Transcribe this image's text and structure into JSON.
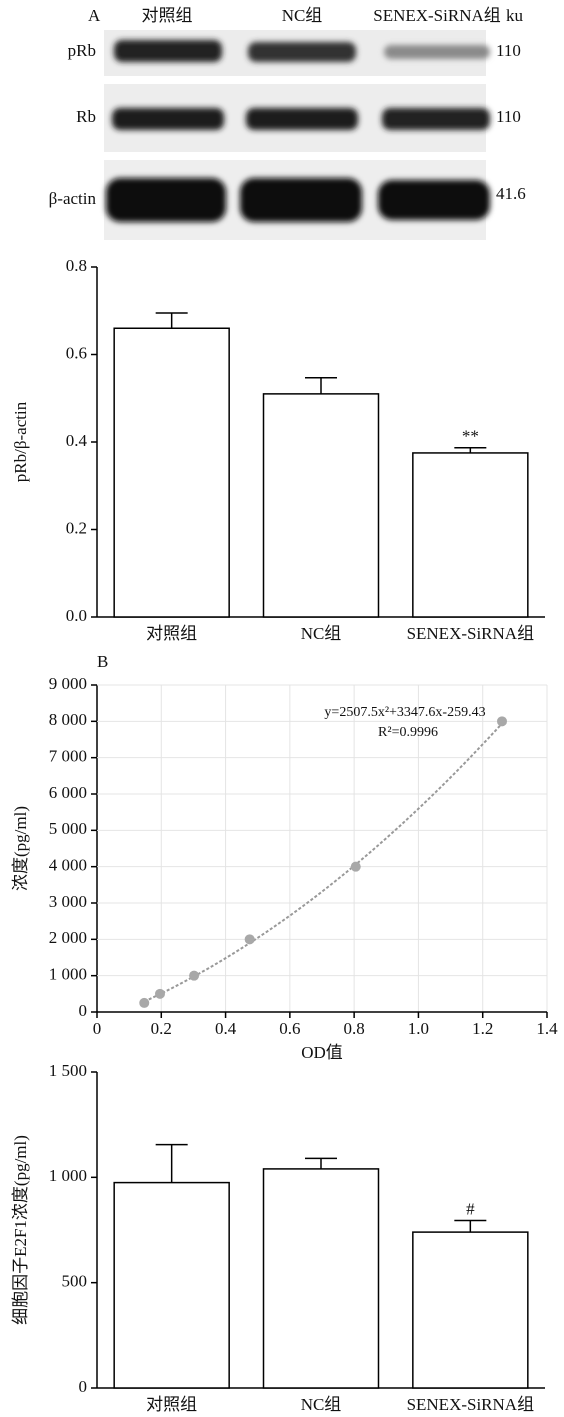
{
  "blot": {
    "panel_label": "A",
    "columns": [
      "对照组",
      "NC组",
      "SENEX-SiRNA组"
    ],
    "unit": "ku",
    "rows": [
      {
        "label": "pRb",
        "size": "110"
      },
      {
        "label": "Rb",
        "size": "110"
      },
      {
        "label": "β-actin",
        "size": "41.6"
      }
    ]
  },
  "chart_data": [
    {
      "type": "bar",
      "y_label": "pRb/β-actin",
      "categories": [
        "对照组",
        "NC组",
        "SENEX-SiRNA组"
      ],
      "values": [
        0.66,
        0.51,
        0.375
      ],
      "errors": [
        0.035,
        0.037,
        0.012
      ],
      "annotations": [
        null,
        null,
        "**"
      ],
      "color": "#ffffff",
      "ylim": [
        0,
        0.8
      ],
      "yticks": [
        {
          "value": 0,
          "label": "0.0"
        },
        0.2,
        0.4,
        0.6,
        0.8
      ]
    },
    {
      "type": "scatter",
      "panel_label": "B",
      "x_label": "OD值",
      "y_label": "浓度(pg/ml)",
      "x": [
        0.147,
        0.196,
        0.302,
        0.475,
        0.805,
        1.26
      ],
      "values": [
        250,
        500,
        1000,
        2000,
        4000,
        8000
      ],
      "color": "#a8a8a8",
      "equation": "y=2507.5x²+3347.6x-259.43",
      "r_squared": "R²=0.9996",
      "fit_coefficients": [
        2507.5,
        3347.6,
        -259.43
      ],
      "grid": true,
      "xlim": [
        0,
        1.4
      ],
      "xticks": [
        0,
        0.2,
        0.4,
        0.6,
        0.8,
        {
          "value": 1,
          "label": "1.0"
        },
        1.2,
        1.4
      ],
      "ylim": [
        0,
        9000
      ],
      "yticks": [
        0,
        {
          "value": 1000,
          "label": "1 000"
        },
        {
          "value": 2000,
          "label": "2 000"
        },
        {
          "value": 3000,
          "label": "3 000"
        },
        {
          "value": 4000,
          "label": "4 000"
        },
        {
          "value": 5000,
          "label": "5 000"
        },
        {
          "value": 6000,
          "label": "6 000"
        },
        {
          "value": 7000,
          "label": "7 000"
        },
        {
          "value": 8000,
          "label": "8 000"
        },
        {
          "value": 9000,
          "label": "9 000"
        }
      ]
    },
    {
      "type": "bar",
      "y_label": "细胞因子E2F1浓度(pg/ml)",
      "categories": [
        "对照组",
        "NC组",
        "SENEX-SiRNA组"
      ],
      "values": [
        975,
        1040,
        740
      ],
      "errors": [
        180,
        50,
        55
      ],
      "annotations": [
        null,
        null,
        "#"
      ],
      "color": "#ffffff",
      "ylim": [
        0,
        1500
      ],
      "yticks": [
        0,
        500,
        {
          "value": 1000,
          "label": "1 000"
        },
        {
          "value": 1500,
          "label": "1 500"
        }
      ]
    }
  ]
}
